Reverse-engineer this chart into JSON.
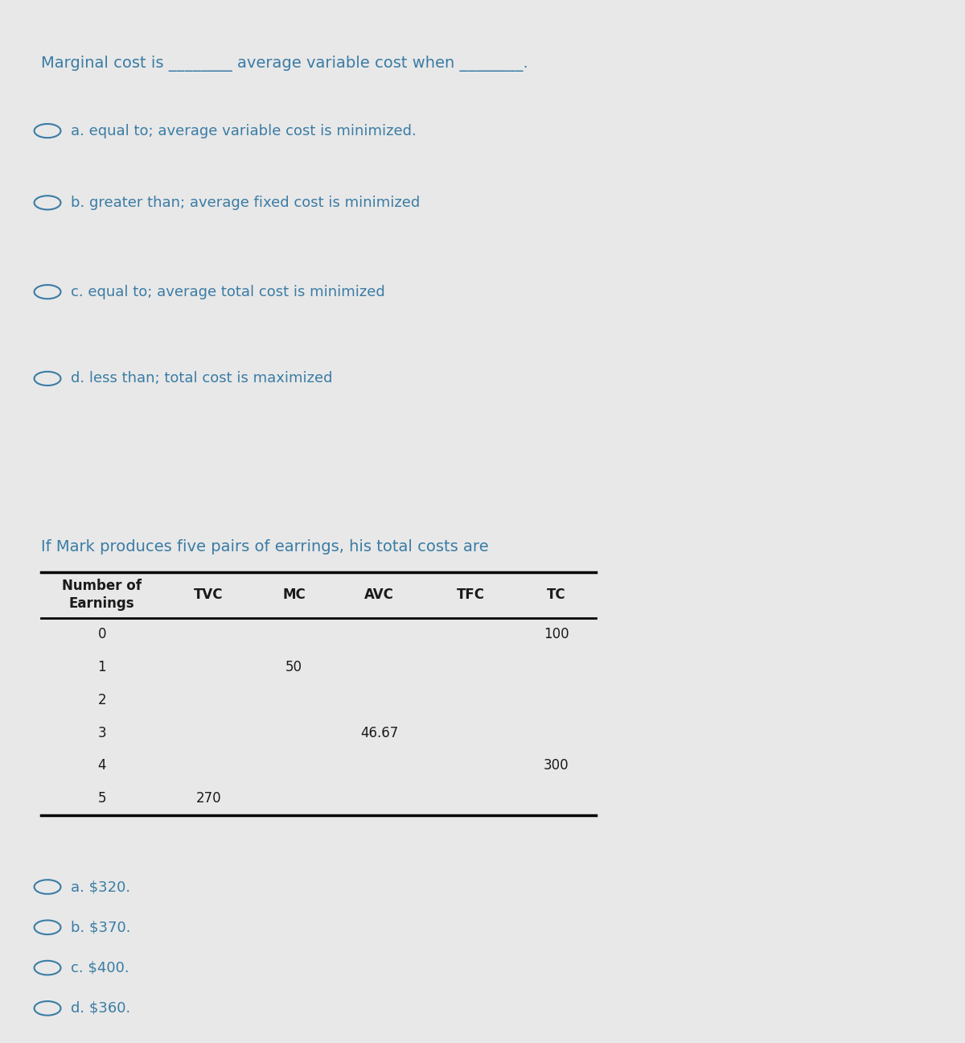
{
  "bg_color_top": "#daeef3",
  "bg_color_bottom": "#daeef3",
  "white_gap_color": "#f0f0f0",
  "text_color": "#3a7ca5",
  "table_text_color": "#1a1a1a",
  "question1_text": "Marginal cost is ________ average variable cost when ________.",
  "q1_options": [
    "a. equal to; average variable cost is minimized.",
    "b. greater than; average fixed cost is minimized",
    "c. equal to; average total cost is minimized",
    "d. less than; total cost is maximized"
  ],
  "question2_text": "If Mark produces five pairs of earrings, his total costs are",
  "table_headers_line1": [
    "Number of",
    "TVC",
    "MC",
    "AVC",
    "TFC",
    "TC"
  ],
  "table_headers_line2": [
    "Earnings",
    "",
    "",
    "",
    "",
    ""
  ],
  "table_rows": [
    [
      "0",
      "",
      "",
      "",
      "",
      "100"
    ],
    [
      "1",
      "",
      "50",
      "",
      "",
      ""
    ],
    [
      "2",
      "",
      "",
      "",
      "",
      ""
    ],
    [
      "3",
      "",
      "",
      "46.67",
      "",
      ""
    ],
    [
      "4",
      "",
      "",
      "",
      "",
      "300"
    ],
    [
      "5",
      "270",
      "",
      "",
      "",
      ""
    ]
  ],
  "q2_options": [
    "a. $320.",
    "b. $370.",
    "c. $400.",
    "d. $360."
  ],
  "font_size_question": 14,
  "font_size_option": 13,
  "font_size_table_header": 12,
  "font_size_table_data": 12
}
